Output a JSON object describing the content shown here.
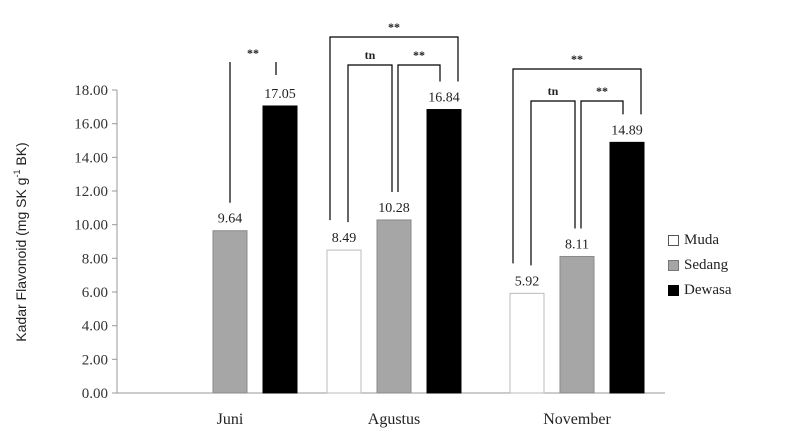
{
  "chart_data": {
    "type": "bar",
    "title": "",
    "ylabel": "Kadar Flavonoid (mg SK g",
    "ylabel_sup": "-1",
    "ylabel_tail": " BK)",
    "xlabel": "",
    "ylim": [
      0,
      18
    ],
    "yticks": [
      "0.00",
      "2.00",
      "4.00",
      "6.00",
      "8.00",
      "10.00",
      "12.00",
      "14.00",
      "16.00",
      "18.00"
    ],
    "categories": [
      "Juni",
      "Agustus",
      "November"
    ],
    "series": [
      {
        "name": "Muda",
        "color": "#ffffff",
        "values": [
          null,
          8.49,
          5.92
        ],
        "labels": [
          "",
          "8.49",
          "5.92"
        ]
      },
      {
        "name": "Sedang",
        "color": "#a6a6a6",
        "values": [
          9.64,
          10.28,
          8.11
        ],
        "labels": [
          "9.64",
          "10.28",
          "8.11"
        ]
      },
      {
        "name": "Dewasa",
        "color": "#000000",
        "values": [
          17.05,
          16.84,
          14.89
        ],
        "labels": [
          "17.05",
          "16.84",
          "14.89"
        ]
      }
    ],
    "significance": [
      {
        "category": 0,
        "from": 1,
        "to": 2,
        "label": "**",
        "level": 0
      },
      {
        "category": 1,
        "from": 0,
        "to": 1,
        "label": "tn",
        "level": 0
      },
      {
        "category": 1,
        "from": 1,
        "to": 2,
        "label": "**",
        "level": 0
      },
      {
        "category": 1,
        "from": 0,
        "to": 2,
        "label": "**",
        "level": 1
      },
      {
        "category": 2,
        "from": 0,
        "to": 1,
        "label": "tn",
        "level": 0
      },
      {
        "category": 2,
        "from": 1,
        "to": 2,
        "label": "**",
        "level": 0
      },
      {
        "category": 2,
        "from": 0,
        "to": 2,
        "label": "**",
        "level": 1
      }
    ],
    "legend_position": "right"
  }
}
